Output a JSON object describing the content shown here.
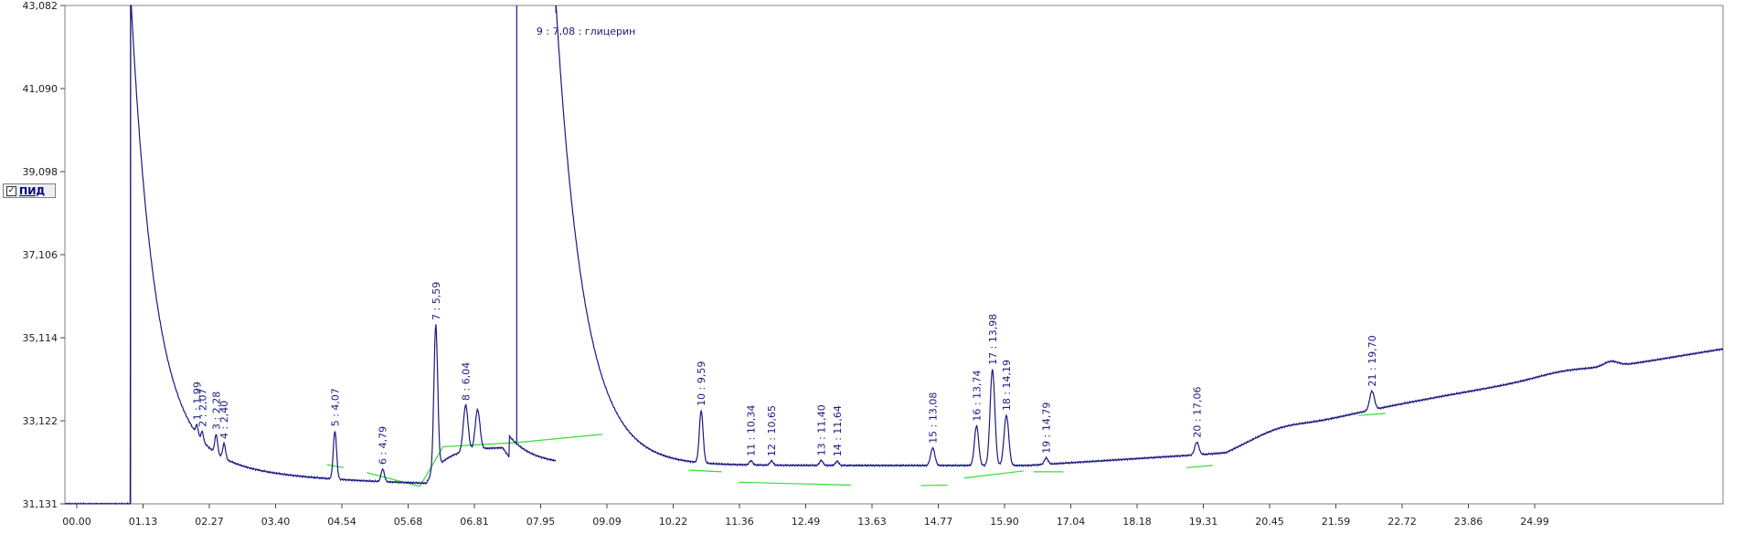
{
  "legend": {
    "label": "ПИД",
    "checked": true,
    "check_glyph": "✓"
  },
  "colors": {
    "signal": "#1a1a80",
    "baseline": "#33dd33",
    "frame": "#808080",
    "background": "#ffffff"
  },
  "chart_data": {
    "type": "line",
    "x_ticks": [
      "00.00",
      "01.13",
      "02.27",
      "03.40",
      "04.54",
      "05.68",
      "06.81",
      "07.95",
      "09.09",
      "10.22",
      "11.36",
      "12.49",
      "13.63",
      "14.77",
      "15.90",
      "17.04",
      "18.18",
      "19.31",
      "20.45",
      "21.59",
      "22.72",
      "23.86",
      "24.99"
    ],
    "y_ticks": [
      "31,131",
      "33,122",
      "35,114",
      "37,106",
      "39,098",
      "41,090",
      "43,082"
    ],
    "xlim": [
      0,
      24.99
    ],
    "ylim": [
      31.131,
      43.082
    ],
    "peaks": [
      {
        "label": "1 : 1,99",
        "t": 1.99,
        "h": 0.22,
        "w": 0.025
      },
      {
        "label": "2 : 2,07",
        "t": 2.07,
        "h": 0.22,
        "w": 0.025
      },
      {
        "label": "3 : 2,28",
        "t": 2.28,
        "h": 0.45,
        "w": 0.03
      },
      {
        "label": "4 : 2,40",
        "t": 2.4,
        "h": 0.35,
        "w": 0.03
      },
      {
        "label": "5 : 4,07",
        "t": 4.07,
        "h": 1.15,
        "w": 0.035
      },
      {
        "label": "6 : 4,79",
        "t": 4.79,
        "h": 0.3,
        "w": 0.035
      },
      {
        "label": "7 : 5,59",
        "t": 5.59,
        "h": 3.45,
        "w": 0.04
      },
      {
        "label": "8 : 6,04",
        "t": 6.04,
        "h": 1.1,
        "w": 0.05
      },
      {
        "label": "",
        "t": 6.22,
        "h": 0.95,
        "w": 0.05
      },
      {
        "label": "9 : 7,08 : глицерин",
        "t": 7.08,
        "h": 0,
        "w": 0.04
      },
      {
        "label": "10 : 9,59",
        "t": 9.59,
        "h": 1.25,
        "w": 0.04
      },
      {
        "label": "11 : 10,34",
        "t": 10.34,
        "h": 0.1,
        "w": 0.035
      },
      {
        "label": "12 : 10,65",
        "t": 10.65,
        "h": 0.1,
        "w": 0.035
      },
      {
        "label": "13 : 11,40",
        "t": 11.4,
        "h": 0.12,
        "w": 0.035
      },
      {
        "label": "14 : 11,64",
        "t": 11.64,
        "h": 0.1,
        "w": 0.035
      },
      {
        "label": "15 : 13,08",
        "t": 13.08,
        "h": 0.42,
        "w": 0.045
      },
      {
        "label": "16 : 13,74",
        "t": 13.74,
        "h": 0.95,
        "w": 0.045
      },
      {
        "label": "17 : 13,98",
        "t": 13.98,
        "h": 2.3,
        "w": 0.05
      },
      {
        "label": "18 : 14,19",
        "t": 14.19,
        "h": 1.2,
        "w": 0.05
      },
      {
        "label": "19 : 14,79",
        "t": 14.79,
        "h": 0.15,
        "w": 0.04
      },
      {
        "label": "20 : 17,06",
        "t": 17.06,
        "h": 0.3,
        "w": 0.045
      },
      {
        "label": "21 : 19,70",
        "t": 19.7,
        "h": 0.45,
        "w": 0.05
      }
    ],
    "baselines": [
      [
        [
          3.95,
          32.07
        ],
        [
          4.2,
          32.0
        ]
      ],
      [
        [
          4.55,
          31.88
        ],
        [
          5.35,
          31.55
        ]
      ],
      [
        [
          5.35,
          31.55
        ],
        [
          5.7,
          32.5
        ]
      ],
      [
        [
          5.7,
          32.5
        ],
        [
          6.81,
          32.6
        ]
      ],
      [
        [
          6.81,
          32.6
        ],
        [
          8.1,
          32.8
        ]
      ],
      [
        [
          9.4,
          31.94
        ],
        [
          9.9,
          31.9
        ]
      ],
      [
        [
          10.15,
          31.65
        ],
        [
          11.85,
          31.58
        ]
      ],
      [
        [
          12.9,
          31.57
        ],
        [
          13.3,
          31.58
        ]
      ],
      [
        [
          13.55,
          31.75
        ],
        [
          14.45,
          31.92
        ]
      ],
      [
        [
          14.6,
          31.9
        ],
        [
          15.05,
          31.9
        ]
      ],
      [
        [
          16.9,
          32.0
        ],
        [
          17.3,
          32.05
        ]
      ],
      [
        [
          19.5,
          33.25
        ],
        [
          19.9,
          33.3
        ]
      ]
    ],
    "grid": false,
    "legend_position": "left"
  }
}
